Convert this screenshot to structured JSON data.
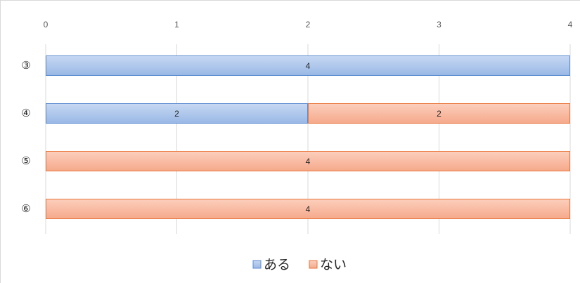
{
  "chart_data": {
    "type": "bar",
    "orientation": "horizontal",
    "stacked": true,
    "categories": [
      "③",
      "④",
      "⑤",
      "⑥"
    ],
    "series": [
      {
        "name": "ある",
        "values": [
          4,
          2,
          0,
          0
        ],
        "color": "#a9c4eb",
        "border": "#5b8ccf"
      },
      {
        "name": "ない",
        "values": [
          0,
          2,
          4,
          4
        ],
        "color": "#f8b9a0",
        "border": "#e8763c"
      }
    ],
    "xlim": [
      0,
      4
    ],
    "xticks": [
      0,
      1,
      2,
      3,
      4
    ],
    "grid": true,
    "legend": "bottom",
    "axis_position": "top"
  }
}
